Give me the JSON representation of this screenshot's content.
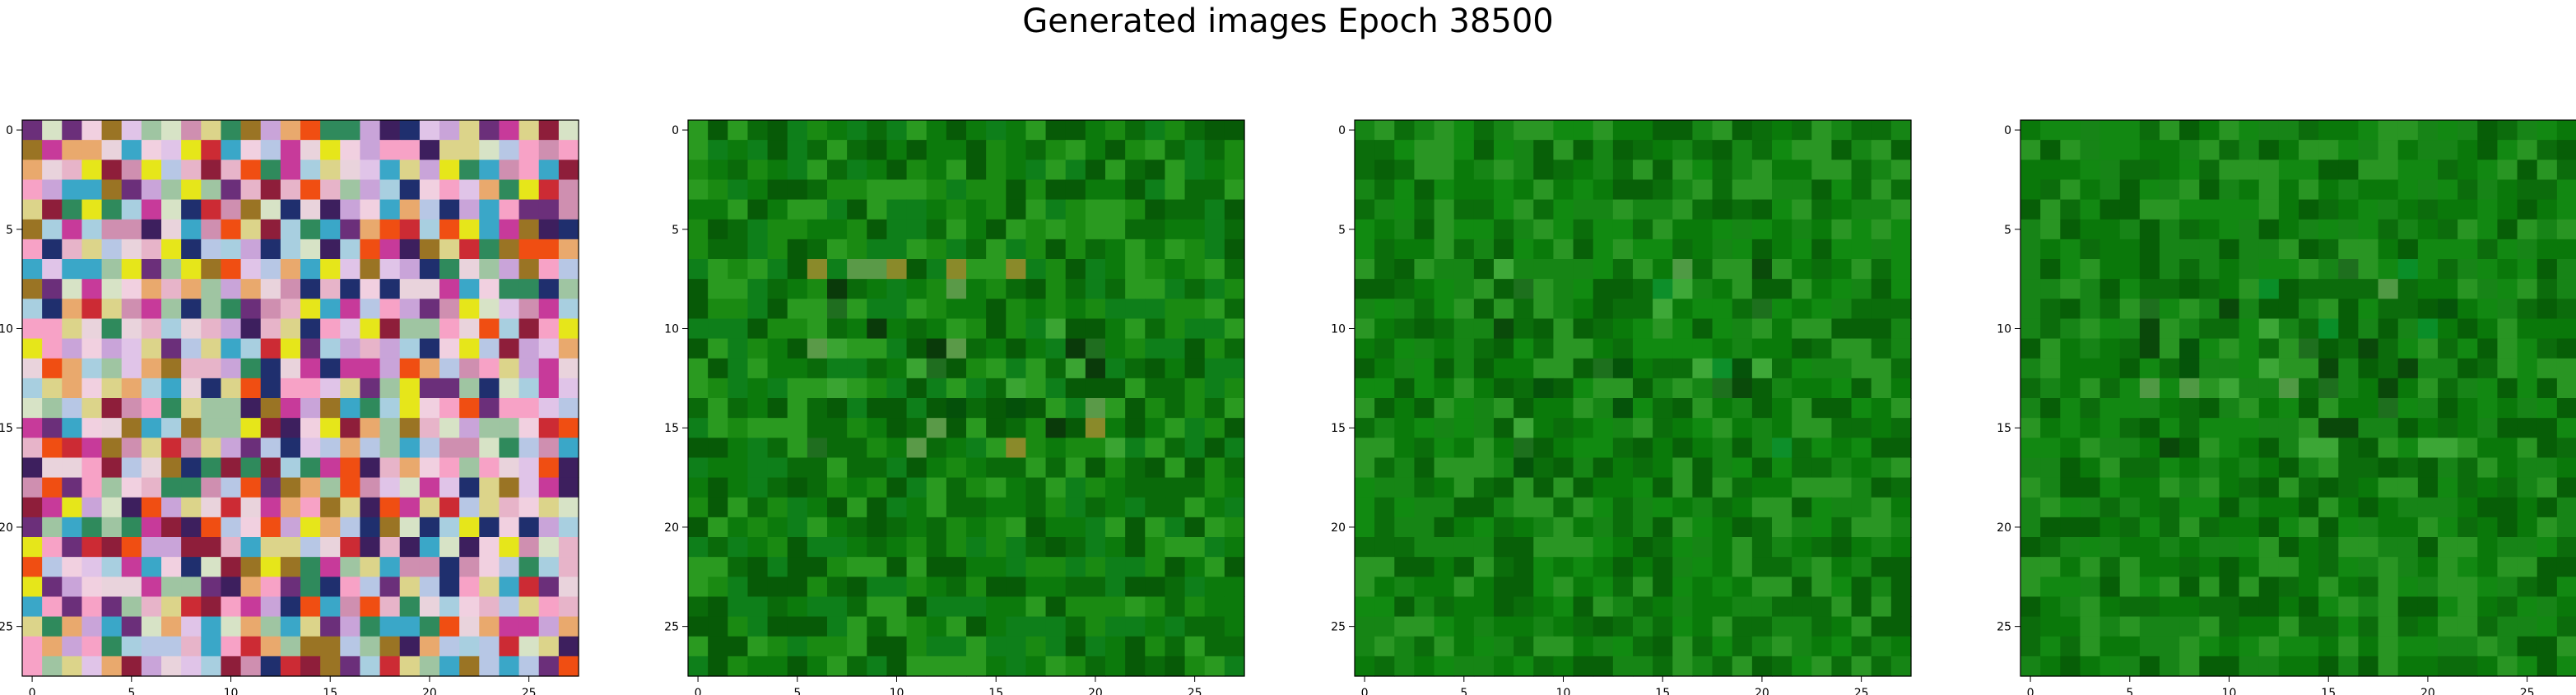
{
  "figure": {
    "title": "Generated images Epoch 38500"
  },
  "chart_data": [
    {
      "type": "heatmap",
      "subject": "generated image 1 (colorful noise)",
      "grid_size": [
        28,
        28
      ],
      "xlim": [
        -0.5,
        27.5
      ],
      "ylim": [
        27.5,
        -0.5
      ],
      "x_ticks": [
        0,
        5,
        10,
        15,
        20,
        25
      ],
      "y_ticks": [
        0,
        5,
        10,
        15,
        20,
        25
      ],
      "x_tick_labels": [
        "0",
        "5",
        "10",
        "15",
        "20",
        "25"
      ],
      "y_tick_labels": [
        "0",
        "5",
        "10",
        "15",
        "20",
        "25"
      ],
      "palette": [
        "#e7b4c9",
        "#c9a4d9",
        "#e9d3dc",
        "#b7c7e5",
        "#d7e3c6",
        "#9fc5a2",
        "#cf8fb0",
        "#e0c4e8",
        "#f1d0e0",
        "#a8cfe0",
        "#e9a96d",
        "#dcd48a",
        "#cc2b34",
        "#8e1e3a",
        "#e6e61a",
        "#3aa7c8",
        "#2f8a5c",
        "#6b2f7a",
        "#f04e12",
        "#9a7424",
        "#3d1f5e",
        "#c73a9a",
        "#1f2f6e",
        "#f7a2c6"
      ]
    },
    {
      "type": "heatmap",
      "subject": "generated image 2 (green)",
      "grid_size": [
        28,
        28
      ],
      "xlim": [
        -0.5,
        27.5
      ],
      "ylim": [
        27.5,
        -0.5
      ],
      "x_ticks": [
        0,
        5,
        10,
        15,
        20,
        25
      ],
      "y_ticks": [
        0,
        5,
        10,
        15,
        20,
        25
      ],
      "x_tick_labels": [
        "0",
        "5",
        "10",
        "15",
        "20",
        "25"
      ],
      "y_tick_labels": [
        "0",
        "5",
        "10",
        "15",
        "20",
        "25"
      ],
      "palette": [
        "#0c7a0c",
        "#0a6a0a",
        "#1a8a12",
        "#075a07",
        "#2a9a20",
        "#0e7f1a",
        "#04500a",
        "#3aa432",
        "#1f6e1f",
        "#5a9a48",
        "#8a8a2a",
        "#0a3a0a"
      ]
    },
    {
      "type": "heatmap",
      "subject": "generated image 3 (green)",
      "grid_size": [
        28,
        28
      ],
      "xlim": [
        -0.5,
        27.5
      ],
      "ylim": [
        27.5,
        -0.5
      ],
      "x_ticks": [
        0,
        5,
        10,
        15,
        20,
        25
      ],
      "y_ticks": [
        0,
        5,
        10,
        15,
        20,
        25
      ],
      "x_tick_labels": [
        "0",
        "5",
        "10",
        "15",
        "20",
        "25"
      ],
      "y_tick_labels": [
        "0",
        "5",
        "10",
        "15",
        "20",
        "25"
      ],
      "palette": [
        "#0a7a0a",
        "#0b6d0b",
        "#168515",
        "#086008",
        "#2a9624",
        "#118a11",
        "#05530a",
        "#3ea838",
        "#1d701d",
        "#4f9a44",
        "#0d8f2a",
        "#0a4a0a"
      ]
    },
    {
      "type": "heatmap",
      "subject": "generated image 4 (green)",
      "grid_size": [
        28,
        28
      ],
      "xlim": [
        -0.5,
        27.5
      ],
      "ylim": [
        27.5,
        -0.5
      ],
      "x_ticks": [
        0,
        5,
        10,
        15,
        20,
        25
      ],
      "y_ticks": [
        0,
        5,
        10,
        15,
        20,
        25
      ],
      "x_tick_labels": [
        "0",
        "5",
        "10",
        "15",
        "20",
        "25"
      ],
      "y_tick_labels": [
        "0",
        "5",
        "10",
        "15",
        "20",
        "25"
      ],
      "palette": [
        "#0a780a",
        "#0c6c0c",
        "#178417",
        "#075e07",
        "#299523",
        "#128812",
        "#05540a",
        "#3ca636",
        "#1e6f1e",
        "#509944",
        "#0a8e28",
        "#0a480a"
      ]
    }
  ]
}
